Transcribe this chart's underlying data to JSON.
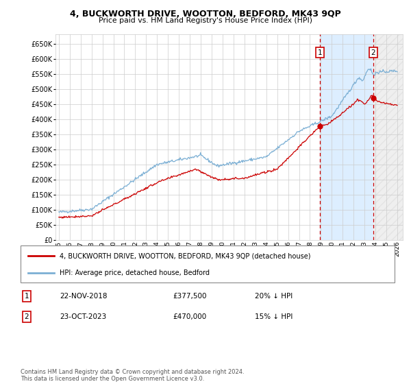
{
  "title": "4, BUCKWORTH DRIVE, WOOTTON, BEDFORD, MK43 9QP",
  "subtitle": "Price paid vs. HM Land Registry's House Price Index (HPI)",
  "ylim": [
    0,
    680000
  ],
  "yticks": [
    0,
    50000,
    100000,
    150000,
    200000,
    250000,
    300000,
    350000,
    400000,
    450000,
    500000,
    550000,
    600000,
    650000
  ],
  "ytick_labels": [
    "£0",
    "£50K",
    "£100K",
    "£150K",
    "£200K",
    "£250K",
    "£300K",
    "£350K",
    "£400K",
    "£450K",
    "£500K",
    "£550K",
    "£600K",
    "£650K"
  ],
  "hpi_color": "#7bafd4",
  "price_color": "#cc0000",
  "vline_color": "#cc0000",
  "sale1_x": 2018.917,
  "sale2_x": 2023.792,
  "sale1_price": 377500,
  "sale2_price": 470000,
  "legend_address": "4, BUCKWORTH DRIVE, WOOTTON, BEDFORD, MK43 9QP (detached house)",
  "legend_hpi": "HPI: Average price, detached house, Bedford",
  "table_row1": [
    "1",
    "22-NOV-2018",
    "£377,500",
    "20% ↓ HPI"
  ],
  "table_row2": [
    "2",
    "23-OCT-2023",
    "£470,000",
    "15% ↓ HPI"
  ],
  "footer": "Contains HM Land Registry data © Crown copyright and database right 2024.\nThis data is licensed under the Open Government Licence v3.0.",
  "background_color": "#ffffff",
  "shade_color": "#ddeeff",
  "hatch_color": "#cccccc",
  "xmin": 1995,
  "xmax": 2026
}
